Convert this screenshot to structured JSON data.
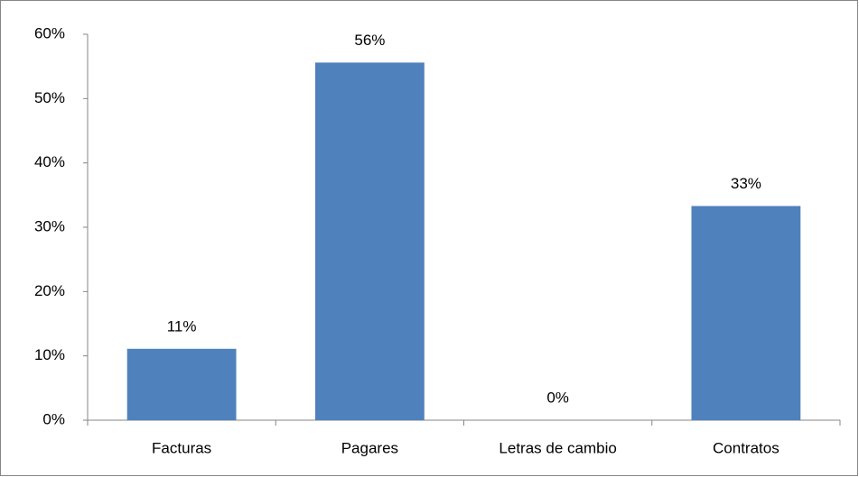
{
  "chart_data": {
    "type": "bar",
    "categories": [
      "Facturas",
      "Pagares",
      "Letras de cambio",
      "Contratos"
    ],
    "values": [
      11.1,
      55.6,
      0,
      33.3
    ],
    "value_labels": [
      "11%",
      "56%",
      "0%",
      "33%"
    ],
    "color": "#4f81bd",
    "ylim": [
      0,
      60
    ],
    "yticks": [
      {
        "value": 0,
        "label": "0%"
      },
      {
        "value": 10,
        "label": "10%"
      },
      {
        "value": 20,
        "label": "20%"
      },
      {
        "value": 30,
        "label": "30%"
      },
      {
        "value": 40,
        "label": "40%"
      },
      {
        "value": 50,
        "label": "50%"
      },
      {
        "value": 60,
        "label": "60%"
      }
    ],
    "grid": false
  }
}
